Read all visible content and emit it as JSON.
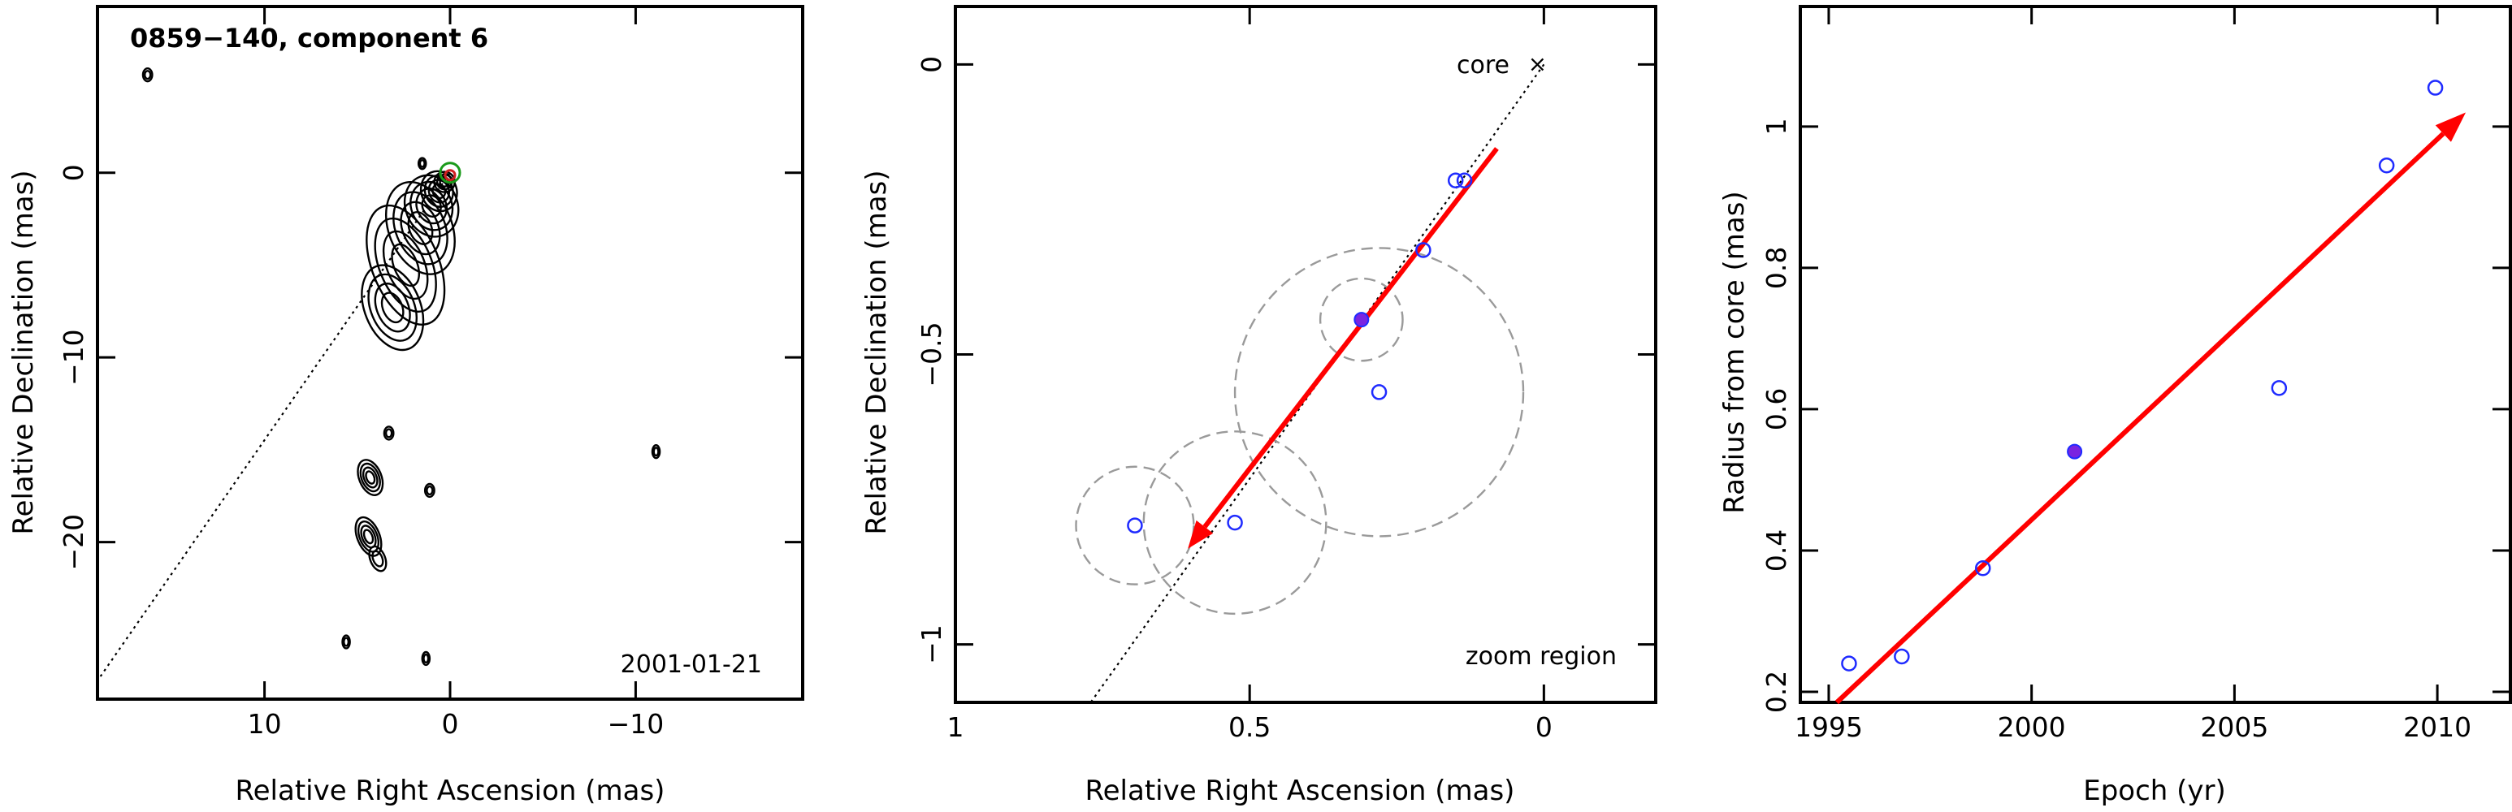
{
  "chart_data": [
    {
      "type": "contour",
      "title": "0859−140, component 6",
      "date_label": "2001-01-21",
      "xlabel": "Relative Right Ascension (mas)",
      "ylabel": "Relative Declination (mas)",
      "xlim": [
        19,
        -19
      ],
      "ylim": [
        -28.5,
        9
      ],
      "xticks": [
        10,
        0,
        -10
      ],
      "yticks": [
        0,
        -10,
        -20
      ],
      "xtick_labels": [
        "10",
        "0",
        "−10"
      ],
      "ytick_labels": [
        "0",
        "−10",
        "−20"
      ],
      "core": [
        0,
        0
      ],
      "direction_line": {
        "from": [
          0,
          0
        ],
        "to": [
          19,
          -27.5
        ]
      },
      "contour_blobs": [
        {
          "x": 0.3,
          "y": -0.5,
          "rx": 0.55,
          "ry": 0.55
        },
        {
          "x": 0.6,
          "y": -1.0,
          "rx": 0.95,
          "ry": 1.1
        },
        {
          "x": 1.0,
          "y": -1.8,
          "rx": 1.4,
          "ry": 1.7
        },
        {
          "x": 1.6,
          "y": -3.0,
          "rx": 1.7,
          "ry": 2.6
        },
        {
          "x": 2.4,
          "y": -5.0,
          "rx": 1.8,
          "ry": 3.4
        },
        {
          "x": 3.1,
          "y": -7.3,
          "rx": 1.5,
          "ry": 2.4
        },
        {
          "x": 4.3,
          "y": -16.5,
          "rx": 0.6,
          "ry": 1.0
        },
        {
          "x": 4.4,
          "y": -19.7,
          "rx": 0.6,
          "ry": 1.1
        },
        {
          "x": 3.9,
          "y": -20.9,
          "rx": 0.4,
          "ry": 0.7
        },
        {
          "x": 1.1,
          "y": -17.2,
          "rx": 0.25,
          "ry": 0.35
        },
        {
          "x": 3.3,
          "y": -14.1,
          "rx": 0.25,
          "ry": 0.35
        },
        {
          "x": 16.3,
          "y": 5.3,
          "rx": 0.25,
          "ry": 0.35
        },
        {
          "x": 1.5,
          "y": 0.5,
          "rx": 0.2,
          "ry": 0.3
        },
        {
          "x": 5.6,
          "y": -25.4,
          "rx": 0.2,
          "ry": 0.35
        },
        {
          "x": 1.3,
          "y": -26.3,
          "rx": 0.2,
          "ry": 0.35
        },
        {
          "x": -11.1,
          "y": -15.1,
          "rx": 0.2,
          "ry": 0.35
        }
      ]
    },
    {
      "type": "scatter",
      "xlabel": "Relative Right Ascension (mas)",
      "ylabel": "Relative Declination (mas)",
      "annotation_core": "core",
      "annotation_region": "zoom region",
      "xlim": [
        1.0,
        -0.19
      ],
      "ylim": [
        -1.1,
        0.1
      ],
      "xticks": [
        1,
        0.5,
        0
      ],
      "yticks": [
        0,
        -0.5,
        -1
      ],
      "xtick_labels": [
        "1",
        "0.5",
        "0"
      ],
      "ytick_labels": [
        "0",
        "−0.5",
        "−1"
      ],
      "core_marker": [
        0,
        0
      ],
      "direction_line": {
        "from": [
          0,
          0
        ],
        "to": [
          0.77,
          -1.1
        ]
      },
      "points": [
        {
          "x": 0.15,
          "y": -0.2,
          "filled": false
        },
        {
          "x": 0.135,
          "y": -0.2,
          "filled": false
        },
        {
          "x": 0.205,
          "y": -0.32,
          "filled": false
        },
        {
          "x": 0.31,
          "y": -0.44,
          "filled": true
        },
        {
          "x": 0.28,
          "y": -0.565,
          "filled": false
        },
        {
          "x": 0.525,
          "y": -0.79,
          "filled": false
        },
        {
          "x": 0.695,
          "y": -0.795,
          "filled": false
        }
      ],
      "error_circles": [
        {
          "x": 0.31,
          "y": -0.44,
          "r": 0.07
        },
        {
          "x": 0.28,
          "y": -0.565,
          "r": 0.245
        },
        {
          "x": 0.525,
          "y": -0.79,
          "r": 0.155
        },
        {
          "x": 0.695,
          "y": -0.795,
          "r": 0.1
        }
      ],
      "motion_vector": {
        "from": [
          0.08,
          -0.145
        ],
        "to": [
          0.605,
          -0.835
        ]
      }
    },
    {
      "type": "scatter",
      "xlabel": "Epoch (yr)",
      "ylabel": "Radius from core (mas)",
      "xlim": [
        1994.3,
        2011.8
      ],
      "ylim": [
        0.185,
        1.17
      ],
      "xticks": [
        1995,
        2000,
        2005,
        2010
      ],
      "yticks": [
        0.2,
        0.4,
        0.6,
        0.8,
        1
      ],
      "xtick_labels": [
        "1995",
        "2000",
        "2005",
        "2010"
      ],
      "ytick_labels": [
        "0.2",
        "0.4",
        "0.6",
        "0.8",
        "1"
      ],
      "points": [
        {
          "x": 1995.5,
          "y": 0.24,
          "filled": false
        },
        {
          "x": 1996.8,
          "y": 0.25,
          "filled": false
        },
        {
          "x": 1998.8,
          "y": 0.375,
          "filled": false
        },
        {
          "x": 2001.06,
          "y": 0.54,
          "filled": true
        },
        {
          "x": 2006.1,
          "y": 0.63,
          "filled": false
        },
        {
          "x": 2008.75,
          "y": 0.945,
          "filled": false
        },
        {
          "x": 2009.95,
          "y": 1.055,
          "filled": false
        }
      ],
      "fit_line": {
        "from": [
          1995.2,
          0.185
        ],
        "to": [
          2010.7,
          1.02
        ]
      }
    }
  ]
}
